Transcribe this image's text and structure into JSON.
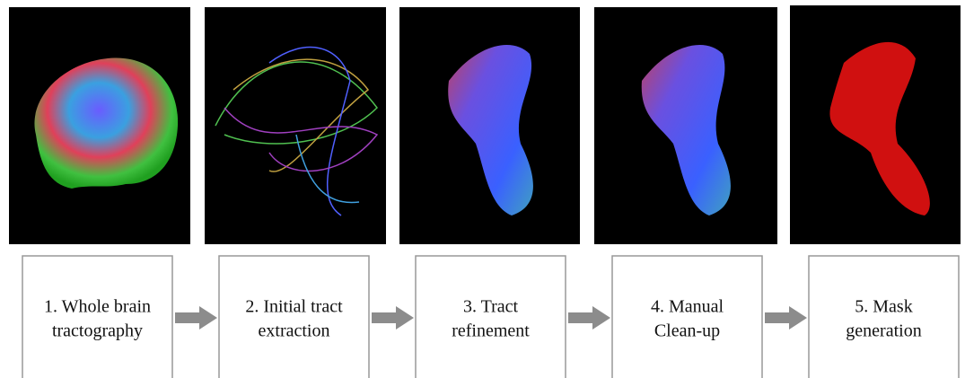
{
  "steps": [
    [
      "1. Whole brain",
      "tractography"
    ],
    [
      "2. Initial tract",
      "extraction"
    ],
    [
      "3. Tract",
      "refinement"
    ],
    [
      "4. Manual",
      "Clean-up"
    ],
    [
      "5. Mask",
      "generation"
    ]
  ]
}
